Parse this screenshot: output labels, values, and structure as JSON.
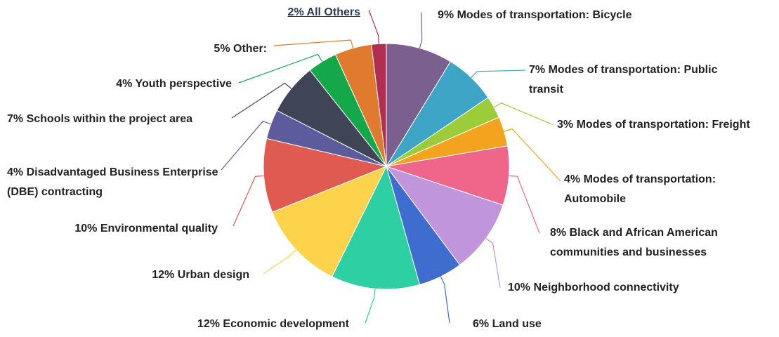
{
  "chart_data": {
    "type": "pie",
    "categories": [
      "Modes of transportation: Bicycle",
      "Modes of transportation: Public transit",
      "Modes of transportation: Freight",
      "Modes of transportation: Automobile",
      "Black and African American communities and businesses",
      "Neighborhood connectivity",
      "Land use",
      "Economic development",
      "Urban design",
      "Environmental quality",
      "Disadvantaged Business Enterprise (DBE) contracting",
      "Schools within the project area",
      "Youth perspective",
      "Other:",
      "All Others"
    ],
    "values": [
      9,
      7,
      3,
      4,
      8,
      10,
      6,
      12,
      12,
      10,
      4,
      7,
      4,
      5,
      2
    ],
    "value_labels": [
      "9%",
      "7%",
      "3%",
      "4%",
      "8%",
      "10%",
      "6%",
      "12%",
      "12%",
      "10%",
      "4%",
      "7%",
      "4%",
      "5%",
      "2%"
    ],
    "colors": [
      "#7b5f8f",
      "#3fa5c6",
      "#9ccc3a",
      "#f4a31e",
      "#f0668a",
      "#c095dc",
      "#3f6ccf",
      "#2ecfa3",
      "#fcd34a",
      "#df5a50",
      "#5c5c9c",
      "#3f4556",
      "#14a84b",
      "#e07a2e",
      "#b32d52"
    ]
  }
}
